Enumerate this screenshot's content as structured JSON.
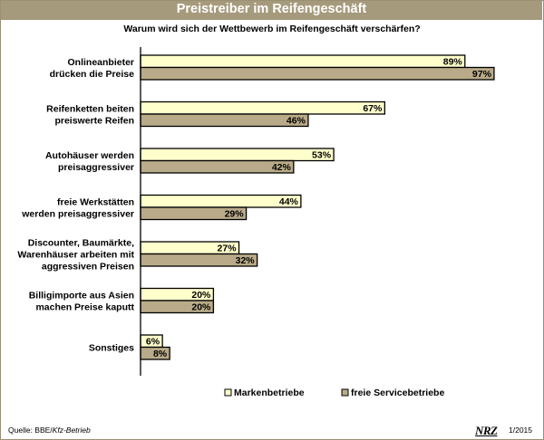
{
  "header": {
    "title": "Preistreiber im Reifengeschäft"
  },
  "chart_data": {
    "type": "bar",
    "orientation": "horizontal",
    "title": "Warum wird sich der Wettbewerb im Reifengeschäft verschärfen?",
    "value_suffix": "%",
    "xlim": [
      0,
      100
    ],
    "grid": false,
    "legend_position": "bottom",
    "categories": [
      [
        "Onlineanbieter",
        "drücken die Preise"
      ],
      [
        "Reifenketten beiten",
        "preiswerte Reifen"
      ],
      [
        "Autohäuser werden",
        "preisaggressiver"
      ],
      [
        "freie Werkstätten",
        "werden preisaggressiver"
      ],
      [
        "Discounter, Baumärkte,",
        "Warenhäuser arbeiten mit",
        "aggressiven Preisen"
      ],
      [
        "Billigimporte aus Asien",
        "machen Preise kaputt"
      ],
      [
        "Sonstiges"
      ]
    ],
    "series": [
      {
        "name": "Markenbetriebe",
        "color": "#ffffcc",
        "values": [
          89,
          67,
          53,
          44,
          27,
          20,
          6
        ]
      },
      {
        "name": "freie Servicebetriebe",
        "color": "#b9ab89",
        "values": [
          97,
          46,
          42,
          29,
          32,
          20,
          8
        ]
      }
    ]
  },
  "footer": {
    "source_label": "Quelle: BBE/",
    "source_italic": "Kfz-Betrieb",
    "logo_text": "NRZ",
    "date": "1/2015"
  }
}
